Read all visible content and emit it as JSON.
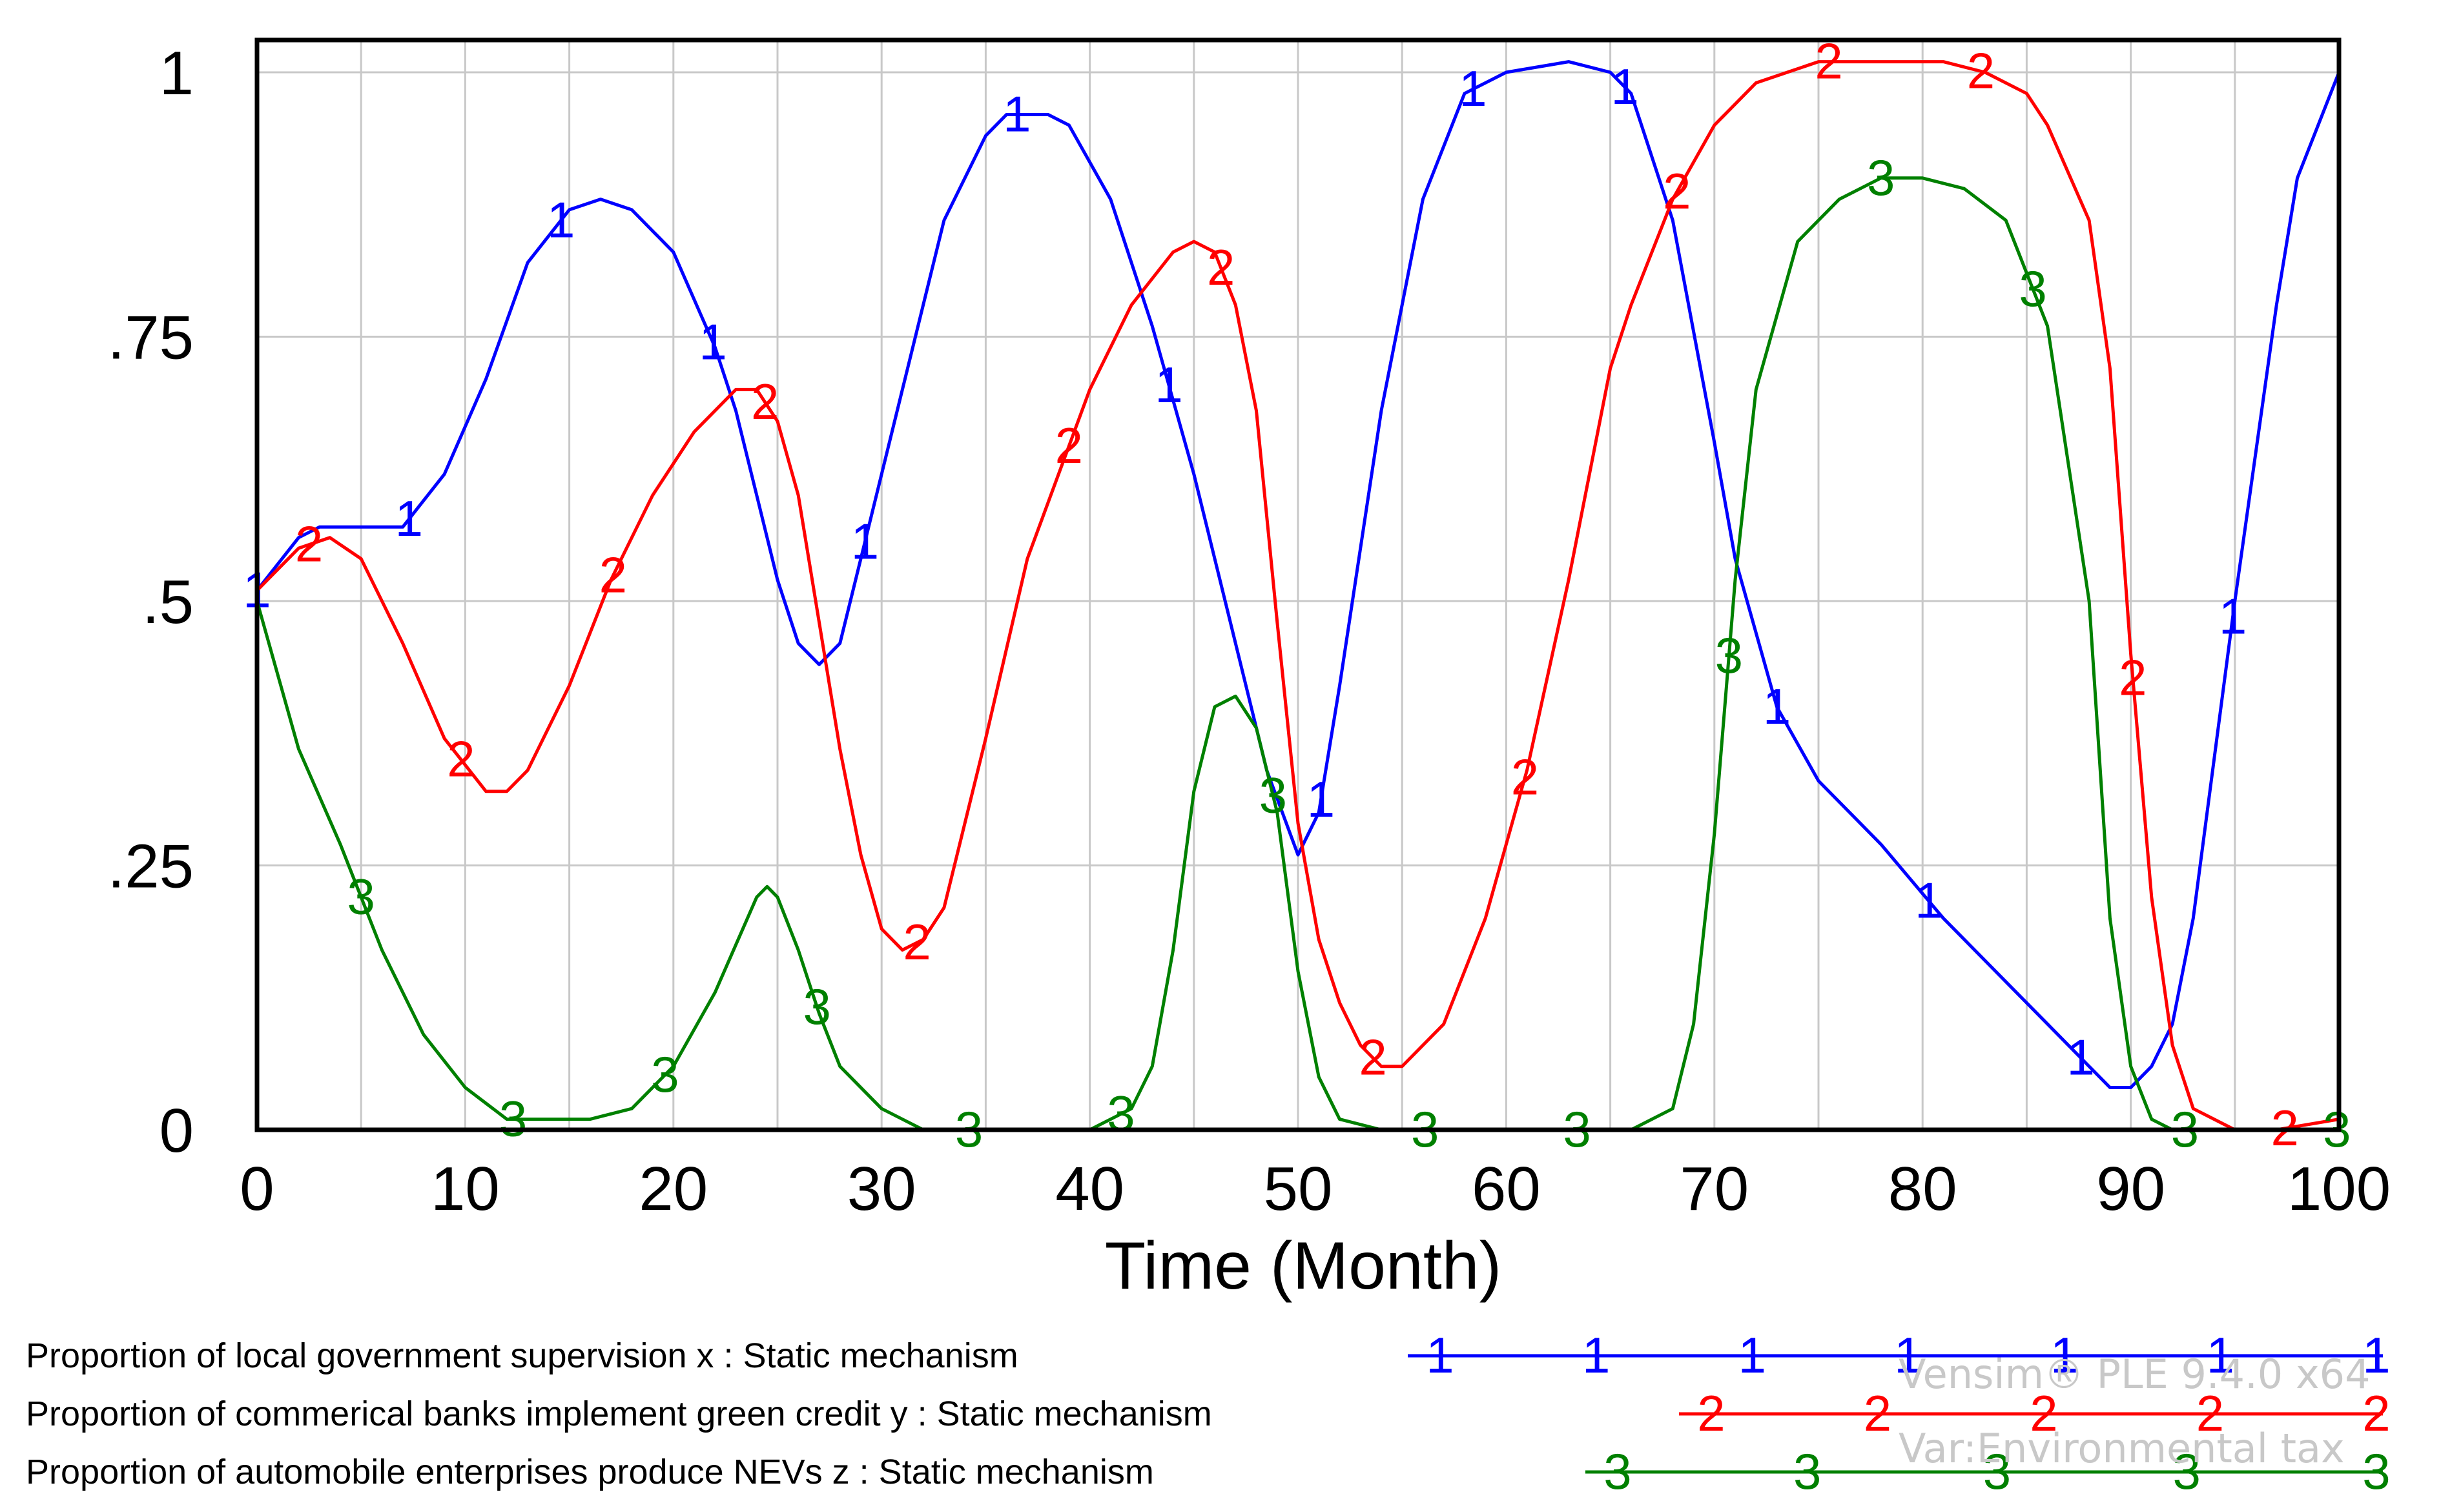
{
  "chart_data": {
    "type": "line",
    "xlabel": "Time (Month)",
    "ylabel": "",
    "xlim": [
      0,
      100
    ],
    "ylim": [
      0,
      1
    ],
    "x_ticks": [
      0,
      10,
      20,
      30,
      40,
      50,
      60,
      70,
      80,
      90,
      100
    ],
    "x_tick_labels": [
      "0",
      "10",
      "20",
      "30",
      "40",
      "50",
      "60",
      "70",
      "80",
      "90",
      "100"
    ],
    "y_ticks": [
      0,
      0.25,
      0.5,
      0.75,
      1
    ],
    "y_tick_labels": [
      "0",
      ".25",
      ".5",
      ".75",
      "1"
    ],
    "grid": true,
    "legend_position": "bottom",
    "series": [
      {
        "name": "Proportion of local government supervision x : Static mechanism",
        "marker": "1",
        "color": "#0000ff",
        "points": [
          [
            0,
            0.51
          ],
          [
            2,
            0.56
          ],
          [
            3,
            0.57
          ],
          [
            6,
            0.57
          ],
          [
            7,
            0.57
          ],
          [
            9,
            0.62
          ],
          [
            11,
            0.71
          ],
          [
            13,
            0.82
          ],
          [
            15,
            0.87
          ],
          [
            16.5,
            0.88
          ],
          [
            18,
            0.87
          ],
          [
            20,
            0.83
          ],
          [
            22,
            0.74
          ],
          [
            23,
            0.68
          ],
          [
            24,
            0.6
          ],
          [
            25,
            0.52
          ],
          [
            26,
            0.46
          ],
          [
            27,
            0.44
          ],
          [
            28,
            0.46
          ],
          [
            29,
            0.54
          ],
          [
            31,
            0.7
          ],
          [
            33,
            0.86
          ],
          [
            35,
            0.94
          ],
          [
            36,
            0.96
          ],
          [
            38,
            0.96
          ],
          [
            39,
            0.95
          ],
          [
            41,
            0.88
          ],
          [
            43,
            0.76
          ],
          [
            45,
            0.62
          ],
          [
            47,
            0.46
          ],
          [
            48.5,
            0.34
          ],
          [
            50,
            0.26
          ],
          [
            51,
            0.3
          ],
          [
            52,
            0.42
          ],
          [
            54,
            0.68
          ],
          [
            56,
            0.88
          ],
          [
            58,
            0.98
          ],
          [
            60,
            1.0
          ],
          [
            63,
            1.01
          ],
          [
            65,
            1.0
          ],
          [
            66,
            0.98
          ],
          [
            68,
            0.86
          ],
          [
            70,
            0.65
          ],
          [
            71,
            0.54
          ],
          [
            73,
            0.4
          ],
          [
            75,
            0.33
          ],
          [
            78,
            0.27
          ],
          [
            81,
            0.2
          ],
          [
            85,
            0.12
          ],
          [
            88,
            0.06
          ],
          [
            89,
            0.04
          ],
          [
            90,
            0.04
          ],
          [
            91,
            0.06
          ],
          [
            92,
            0.1
          ],
          [
            93,
            0.2
          ],
          [
            95,
            0.5
          ],
          [
            97,
            0.78
          ],
          [
            98,
            0.9
          ],
          [
            100,
            1.0
          ]
        ]
      },
      {
        "name": "Proportion of commerical banks implement green credit y : Static mechanism",
        "marker": "2",
        "color": "#ff0000",
        "points": [
          [
            0,
            0.51
          ],
          [
            2,
            0.55
          ],
          [
            3.5,
            0.56
          ],
          [
            5,
            0.54
          ],
          [
            7,
            0.46
          ],
          [
            9,
            0.37
          ],
          [
            11,
            0.32
          ],
          [
            12,
            0.32
          ],
          [
            13,
            0.34
          ],
          [
            15,
            0.42
          ],
          [
            17,
            0.52
          ],
          [
            19,
            0.6
          ],
          [
            21,
            0.66
          ],
          [
            23,
            0.7
          ],
          [
            24,
            0.7
          ],
          [
            25,
            0.67
          ],
          [
            26,
            0.6
          ],
          [
            27,
            0.48
          ],
          [
            28,
            0.36
          ],
          [
            29,
            0.26
          ],
          [
            30,
            0.19
          ],
          [
            31,
            0.17
          ],
          [
            32,
            0.18
          ],
          [
            33,
            0.21
          ],
          [
            35,
            0.37
          ],
          [
            37,
            0.54
          ],
          [
            40,
            0.7
          ],
          [
            42,
            0.78
          ],
          [
            44,
            0.83
          ],
          [
            45,
            0.84
          ],
          [
            46,
            0.83
          ],
          [
            47,
            0.78
          ],
          [
            48,
            0.68
          ],
          [
            49,
            0.48
          ],
          [
            50,
            0.29
          ],
          [
            51,
            0.18
          ],
          [
            52,
            0.12
          ],
          [
            53,
            0.08
          ],
          [
            54,
            0.06
          ],
          [
            55,
            0.06
          ],
          [
            57,
            0.1
          ],
          [
            59,
            0.2
          ],
          [
            61,
            0.34
          ],
          [
            63,
            0.52
          ],
          [
            65,
            0.72
          ],
          [
            66,
            0.78
          ],
          [
            68,
            0.88
          ],
          [
            70,
            0.95
          ],
          [
            72,
            0.99
          ],
          [
            75,
            1.01
          ],
          [
            78,
            1.01
          ],
          [
            81,
            1.01
          ],
          [
            83,
            1.0
          ],
          [
            85,
            0.98
          ],
          [
            86,
            0.95
          ],
          [
            88,
            0.86
          ],
          [
            89,
            0.72
          ],
          [
            90,
            0.45
          ],
          [
            91,
            0.22
          ],
          [
            92,
            0.08
          ],
          [
            93,
            0.02
          ],
          [
            95,
            0.0
          ],
          [
            97,
            0.0
          ],
          [
            100,
            0.01
          ]
        ]
      },
      {
        "name": "Proportion of automobile enterprises produce NEVs z : Static mechanism",
        "marker": "3",
        "color": "#008000",
        "points": [
          [
            0,
            0.5
          ],
          [
            2,
            0.36
          ],
          [
            4,
            0.27
          ],
          [
            5,
            0.22
          ],
          [
            6,
            0.17
          ],
          [
            8,
            0.09
          ],
          [
            10,
            0.04
          ],
          [
            12,
            0.01
          ],
          [
            14,
            0.01
          ],
          [
            16,
            0.01
          ],
          [
            18,
            0.02
          ],
          [
            20,
            0.06
          ],
          [
            22,
            0.13
          ],
          [
            24,
            0.22
          ],
          [
            24.5,
            0.23
          ],
          [
            25,
            0.22
          ],
          [
            26,
            0.17
          ],
          [
            27,
            0.11
          ],
          [
            28,
            0.06
          ],
          [
            30,
            0.02
          ],
          [
            32,
            0.0
          ],
          [
            34,
            0.0
          ],
          [
            38,
            0.0
          ],
          [
            40,
            0.0
          ],
          [
            42,
            0.02
          ],
          [
            43,
            0.06
          ],
          [
            44,
            0.17
          ],
          [
            45,
            0.32
          ],
          [
            46,
            0.4
          ],
          [
            47,
            0.41
          ],
          [
            48,
            0.38
          ],
          [
            49,
            0.3
          ],
          [
            50,
            0.15
          ],
          [
            51,
            0.05
          ],
          [
            52,
            0.01
          ],
          [
            54,
            0.0
          ],
          [
            60,
            0.0
          ],
          [
            66,
            0.0
          ],
          [
            68,
            0.02
          ],
          [
            69,
            0.1
          ],
          [
            70,
            0.28
          ],
          [
            71,
            0.52
          ],
          [
            72,
            0.7
          ],
          [
            74,
            0.84
          ],
          [
            76,
            0.88
          ],
          [
            78,
            0.9
          ],
          [
            80,
            0.9
          ],
          [
            82,
            0.89
          ],
          [
            84,
            0.86
          ],
          [
            86,
            0.76
          ],
          [
            88,
            0.5
          ],
          [
            89,
            0.2
          ],
          [
            90,
            0.06
          ],
          [
            91,
            0.01
          ],
          [
            92,
            0.0
          ],
          [
            95,
            0.0
          ],
          [
            100,
            0.0
          ]
        ]
      }
    ]
  },
  "watermark": {
    "line1": "Vensim® PLE 9.4.0 x64",
    "line2": "Var:Environmental tax"
  }
}
